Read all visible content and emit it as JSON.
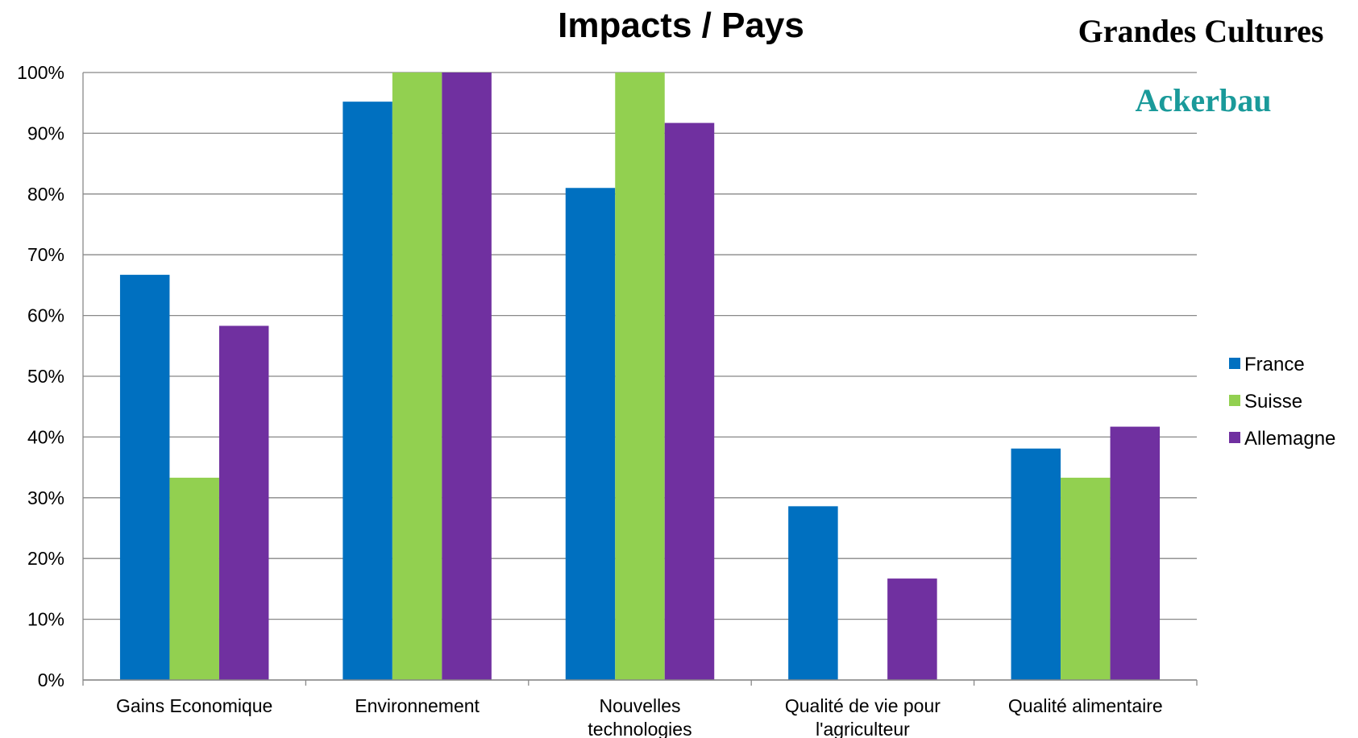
{
  "chart_data": {
    "type": "bar",
    "title": "Impacts / Pays",
    "subtitle": "Grandes Cultures",
    "subtitle2": "Ackerbau",
    "categories": [
      [
        "Gains Economique"
      ],
      [
        "Environnement"
      ],
      [
        "Nouvelles",
        "technologies"
      ],
      [
        "Qualité de vie pour",
        "l'agriculteur"
      ],
      [
        "Qualité alimentaire"
      ]
    ],
    "series": [
      {
        "name": "France",
        "color": "#0070C0",
        "values": [
          66.7,
          95.2,
          81.0,
          28.6,
          38.1
        ]
      },
      {
        "name": "Suisse",
        "color": "#92D050",
        "values": [
          33.3,
          100,
          100,
          0,
          33.3
        ]
      },
      {
        "name": "Allemagne",
        "color": "#7030A0",
        "values": [
          58.3,
          100,
          91.7,
          16.7,
          41.7
        ]
      }
    ],
    "y_ticks": [
      "0%",
      "10%",
      "20%",
      "30%",
      "40%",
      "50%",
      "60%",
      "70%",
      "80%",
      "90%",
      "100%"
    ],
    "ylim": [
      0,
      100
    ],
    "grid": true,
    "legend": "right",
    "colors": {
      "subtitle": "#000000",
      "subtitle2": "#1A9A9A",
      "gridline": "#888888"
    }
  }
}
